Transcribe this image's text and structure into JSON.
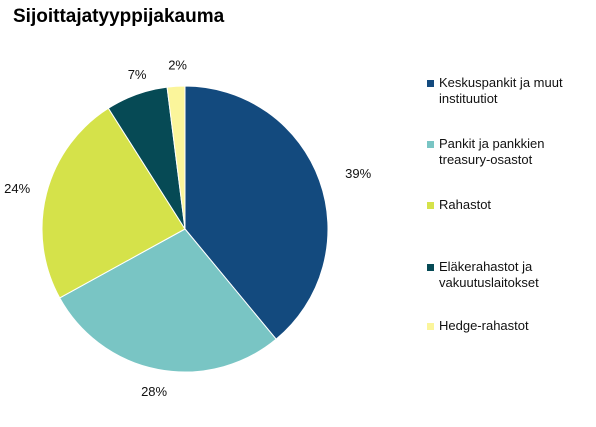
{
  "chart_data": {
    "type": "pie",
    "title": "Sijoittajatyyppijakauma",
    "slices": [
      {
        "label": "Keskuspankit ja muut instituutiot",
        "value": 39,
        "display": "39%",
        "color": "#134A7E"
      },
      {
        "label": "Pankit ja pankkien treasury-osastot",
        "value": 28,
        "display": "28%",
        "color": "#79C5C4"
      },
      {
        "label": "Rahastot",
        "value": 24,
        "display": "24%",
        "color": "#D5E24A"
      },
      {
        "label": "Eläkerahastot ja vakuutuslaitokset",
        "value": 7,
        "display": "7%",
        "color": "#064A55"
      },
      {
        "label": "Hedge-rahastot",
        "value": 2,
        "display": "2%",
        "color": "#FBF59B"
      }
    ],
    "legend_position": "right"
  }
}
